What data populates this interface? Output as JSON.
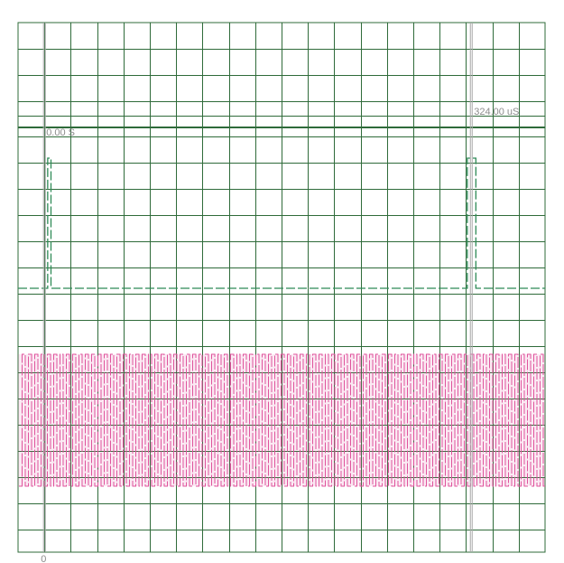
{
  "chart_data": {
    "type": "line",
    "title": "",
    "xlabel": "",
    "ylabel": "",
    "grid": true,
    "colors": {
      "grid": "#2f6b3a",
      "cursor": "#a8a8a8",
      "signal_top": "#2e8b57",
      "signal_bottom": "#e0559e",
      "label": "#8c8c8c"
    },
    "cursors": [
      {
        "name": "cursor-a",
        "label": "0.00 S",
        "time_us": 0
      },
      {
        "name": "cursor-b",
        "label": "324.00 uS",
        "time_us": 324
      }
    ],
    "x_axis": {
      "unit": "uS",
      "xlim": [
        -20,
        380
      ],
      "tick_label": "0"
    },
    "series": [
      {
        "style": "pulse",
        "levels": [
          "low",
          "high"
        ],
        "transitions_us": [
          2.5,
          5,
          321,
          327.5
        ]
      },
      {
        "style": "dense-toggle",
        "levels": [
          "low",
          "high"
        ],
        "period_us": 2.0
      }
    ]
  }
}
